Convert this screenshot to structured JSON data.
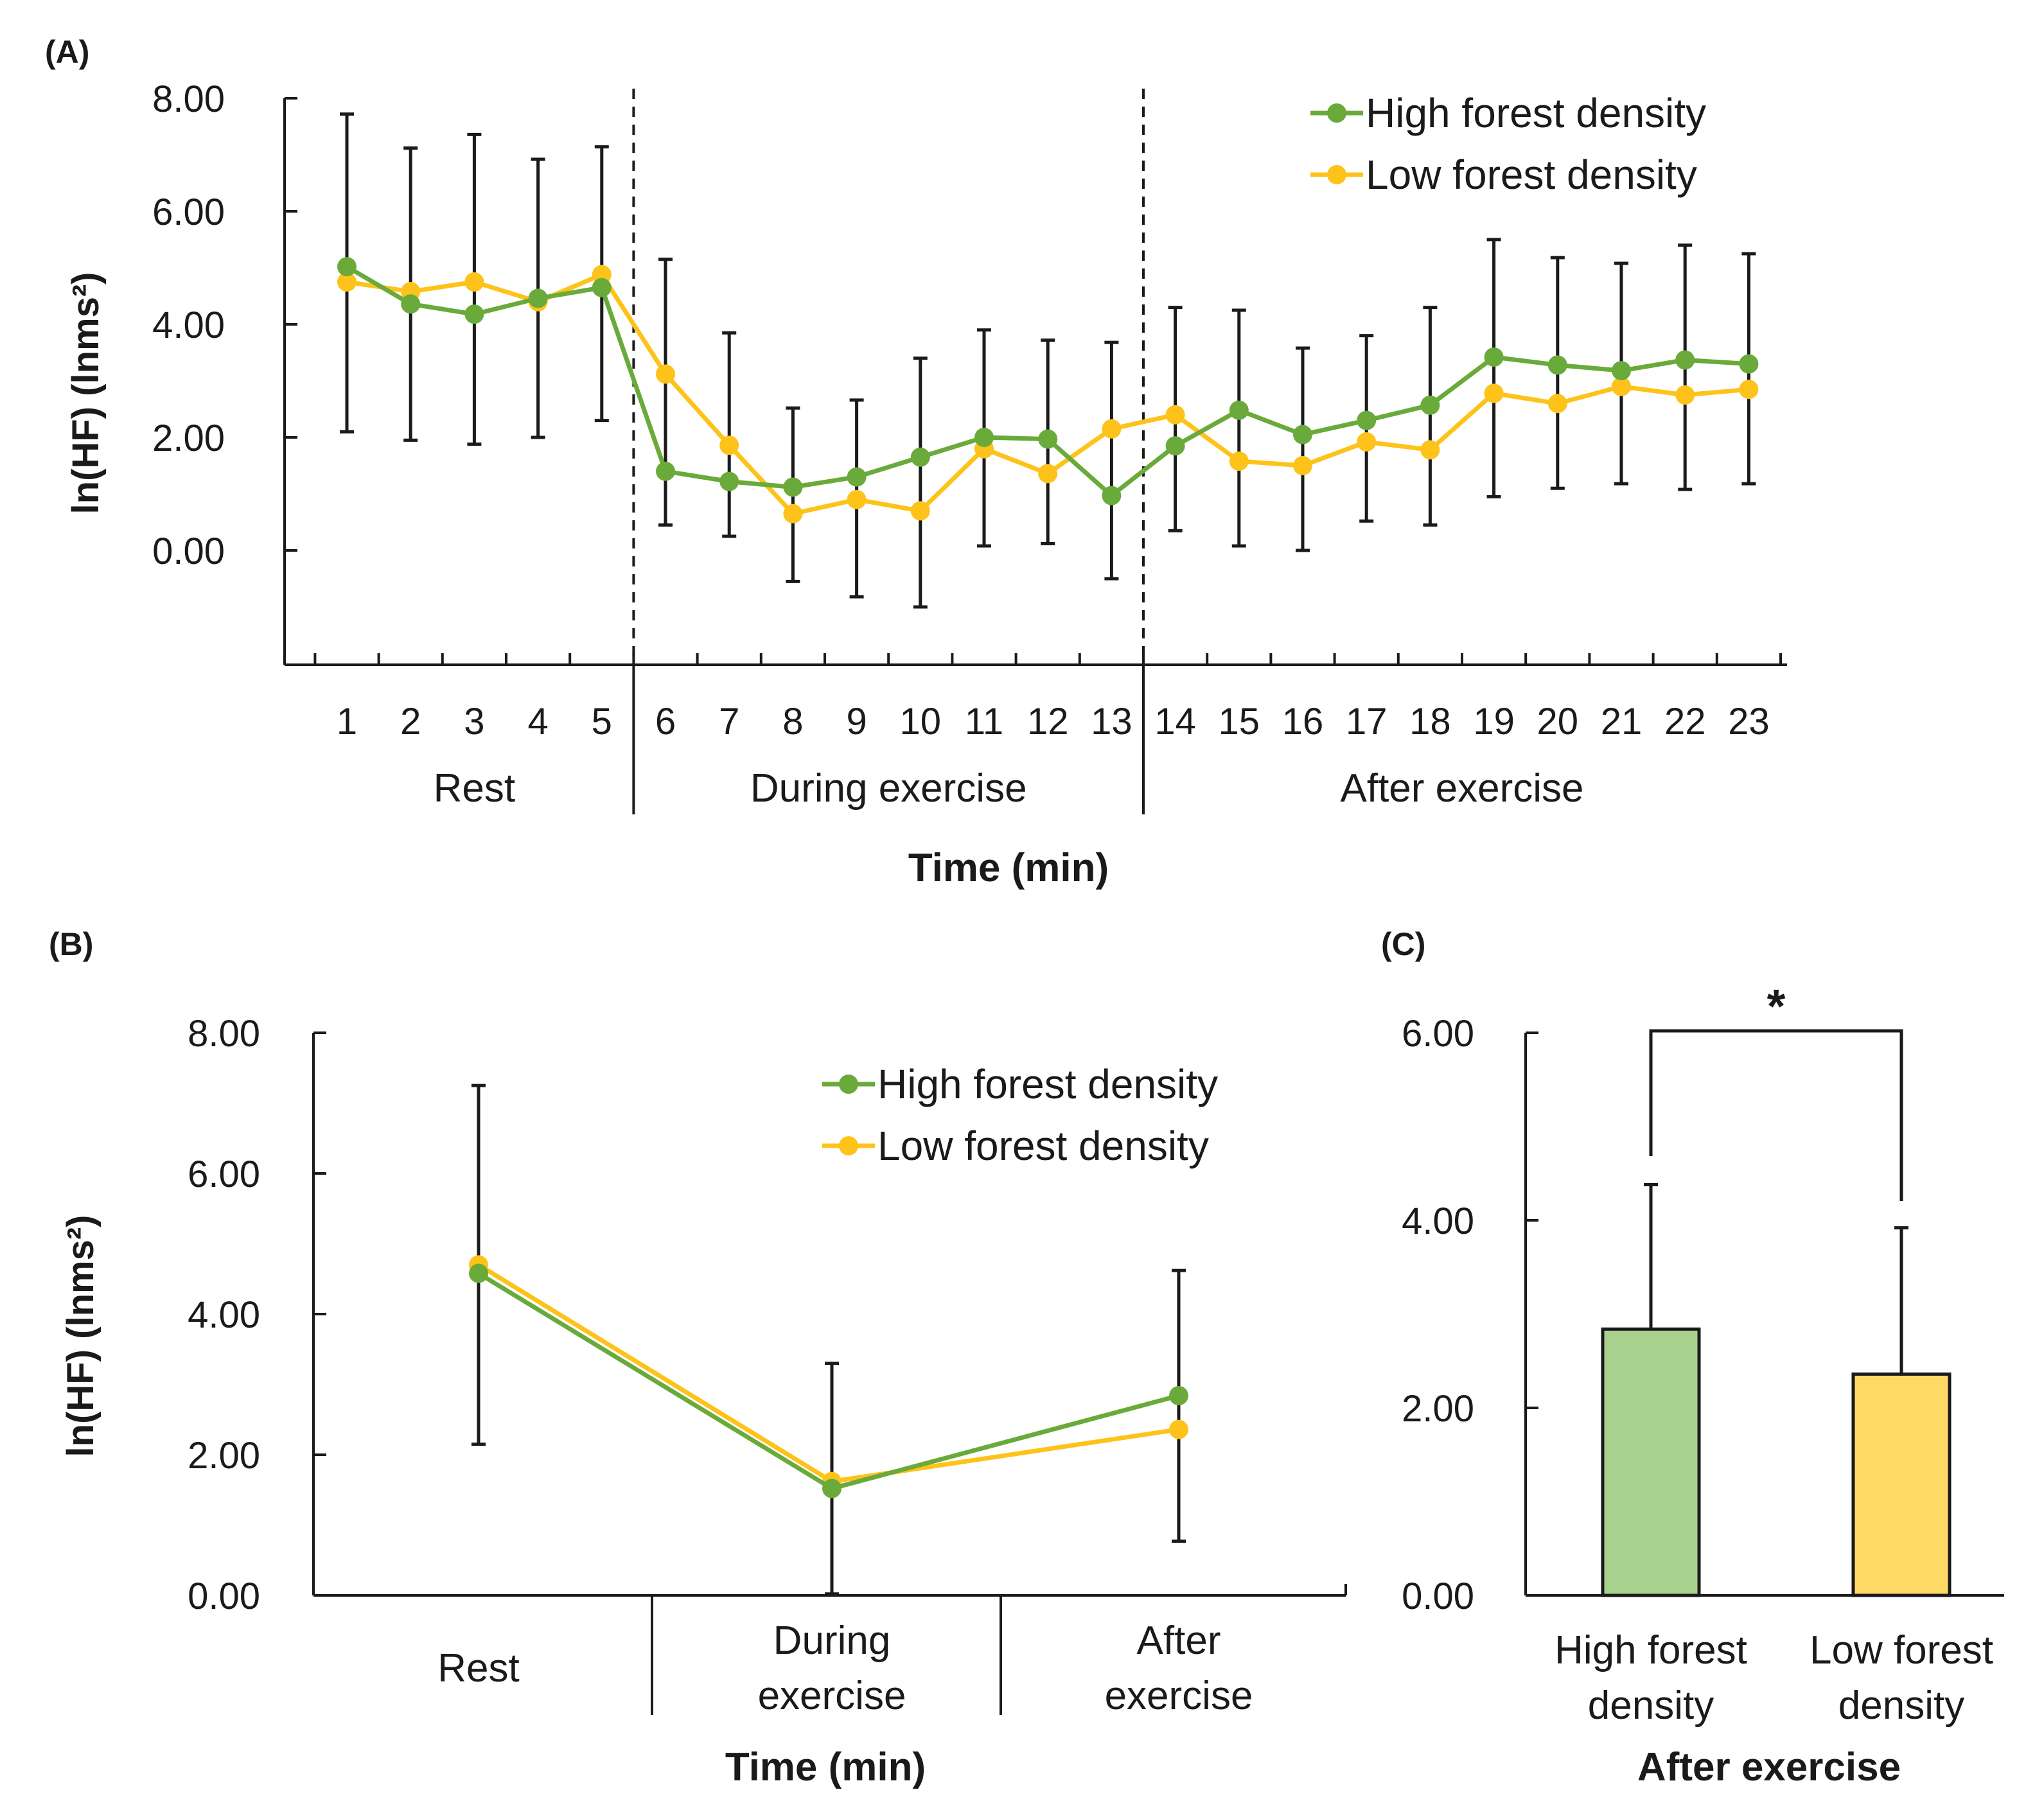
{
  "colors": {
    "high": "#6aaa3a",
    "low": "#fec31a",
    "bar_high": "#a9d18e",
    "bar_low": "#ffd966",
    "text": "#1a1a1a"
  },
  "panel_a_label": "(A)",
  "panel_b_label": "(B)",
  "panel_c_label": "(C)",
  "chart_data": [
    {
      "id": "A",
      "type": "line",
      "title": "",
      "xlabel": "Time (min)",
      "ylabel": "ln(HF) (lnms²)",
      "ylim": [
        -2,
        8
      ],
      "yticks": [
        "8.00",
        "6.00",
        "4.00",
        "2.00",
        "0.00"
      ],
      "ytick_values": [
        8,
        6,
        4,
        2,
        0
      ],
      "categories": [
        "1",
        "2",
        "3",
        "4",
        "5",
        "6",
        "7",
        "8",
        "9",
        "10",
        "11",
        "12",
        "13",
        "14",
        "15",
        "16",
        "17",
        "18",
        "19",
        "20",
        "21",
        "22",
        "23"
      ],
      "groups": [
        {
          "label": "Rest",
          "from": 1,
          "to": 5
        },
        {
          "label": "During exercise",
          "from": 6,
          "to": 13
        },
        {
          "label": "After exercise",
          "from": 14,
          "to": 23
        }
      ],
      "dividers": [
        5.5,
        13.5
      ],
      "legend": [
        "High forest density",
        "Low forest density"
      ],
      "series": [
        {
          "name": "High forest density",
          "values": [
            5.02,
            4.36,
            4.18,
            4.46,
            4.65,
            1.4,
            1.22,
            1.12,
            1.3,
            1.65,
            2.0,
            1.97,
            0.97,
            1.85,
            2.48,
            2.05,
            2.3,
            2.57,
            3.42,
            3.28,
            3.18,
            3.37,
            3.3
          ]
        },
        {
          "name": "Low forest density",
          "values": [
            4.75,
            4.58,
            4.75,
            4.4,
            4.88,
            3.12,
            1.86,
            0.65,
            0.9,
            0.7,
            1.8,
            1.36,
            2.15,
            2.4,
            1.58,
            1.5,
            1.92,
            1.78,
            2.78,
            2.6,
            2.9,
            2.75,
            2.85
          ]
        }
      ],
      "error_bars": [
        [
          2.1,
          7.72
        ],
        [
          1.95,
          7.12
        ],
        [
          1.88,
          7.36
        ],
        [
          2.0,
          6.92
        ],
        [
          2.3,
          7.14
        ],
        [
          0.45,
          5.15
        ],
        [
          0.25,
          3.85
        ],
        [
          -0.55,
          2.52
        ],
        [
          -0.82,
          2.66
        ],
        [
          -1.0,
          3.4
        ],
        [
          0.08,
          3.9
        ],
        [
          0.12,
          3.72
        ],
        [
          -0.5,
          3.68
        ],
        [
          0.35,
          4.3
        ],
        [
          0.08,
          4.25
        ],
        [
          0.0,
          3.58
        ],
        [
          0.52,
          3.8
        ],
        [
          0.45,
          4.3
        ],
        [
          0.95,
          5.5
        ],
        [
          1.1,
          5.18
        ],
        [
          1.18,
          5.08
        ],
        [
          1.08,
          5.4
        ],
        [
          1.18,
          5.25
        ]
      ]
    },
    {
      "id": "B",
      "type": "line",
      "xlabel": "Time (min)",
      "ylabel": "ln(HF) (lnms²)",
      "ylim": [
        0,
        8
      ],
      "yticks": [
        "8.00",
        "6.00",
        "4.00",
        "2.00",
        "0.00"
      ],
      "ytick_values": [
        8,
        6,
        4,
        2,
        0
      ],
      "categories": [
        "Rest",
        [
          "During",
          "exercise"
        ],
        [
          "After",
          "exercise"
        ]
      ],
      "legend": [
        "High forest density",
        "Low forest density"
      ],
      "series": [
        {
          "name": "High forest density",
          "values": [
            4.58,
            1.52,
            2.84
          ]
        },
        {
          "name": "Low forest density",
          "values": [
            4.7,
            1.62,
            2.36
          ]
        }
      ],
      "error_bars": [
        [
          2.15,
          7.25
        ],
        [
          0.02,
          3.3
        ],
        [
          0.77,
          4.62
        ]
      ]
    },
    {
      "id": "C",
      "type": "bar",
      "xlabel": "After exercise",
      "ylim": [
        0,
        6
      ],
      "yticks": [
        "6.00",
        "4.00",
        "2.00",
        "0.00"
      ],
      "ytick_values": [
        6,
        4,
        2,
        0
      ],
      "categories": [
        [
          "High forest",
          "density"
        ],
        [
          "Low forest",
          "density"
        ]
      ],
      "values": [
        2.84,
        2.36
      ],
      "error_tops": [
        4.38,
        3.92
      ],
      "significance": "*"
    }
  ]
}
